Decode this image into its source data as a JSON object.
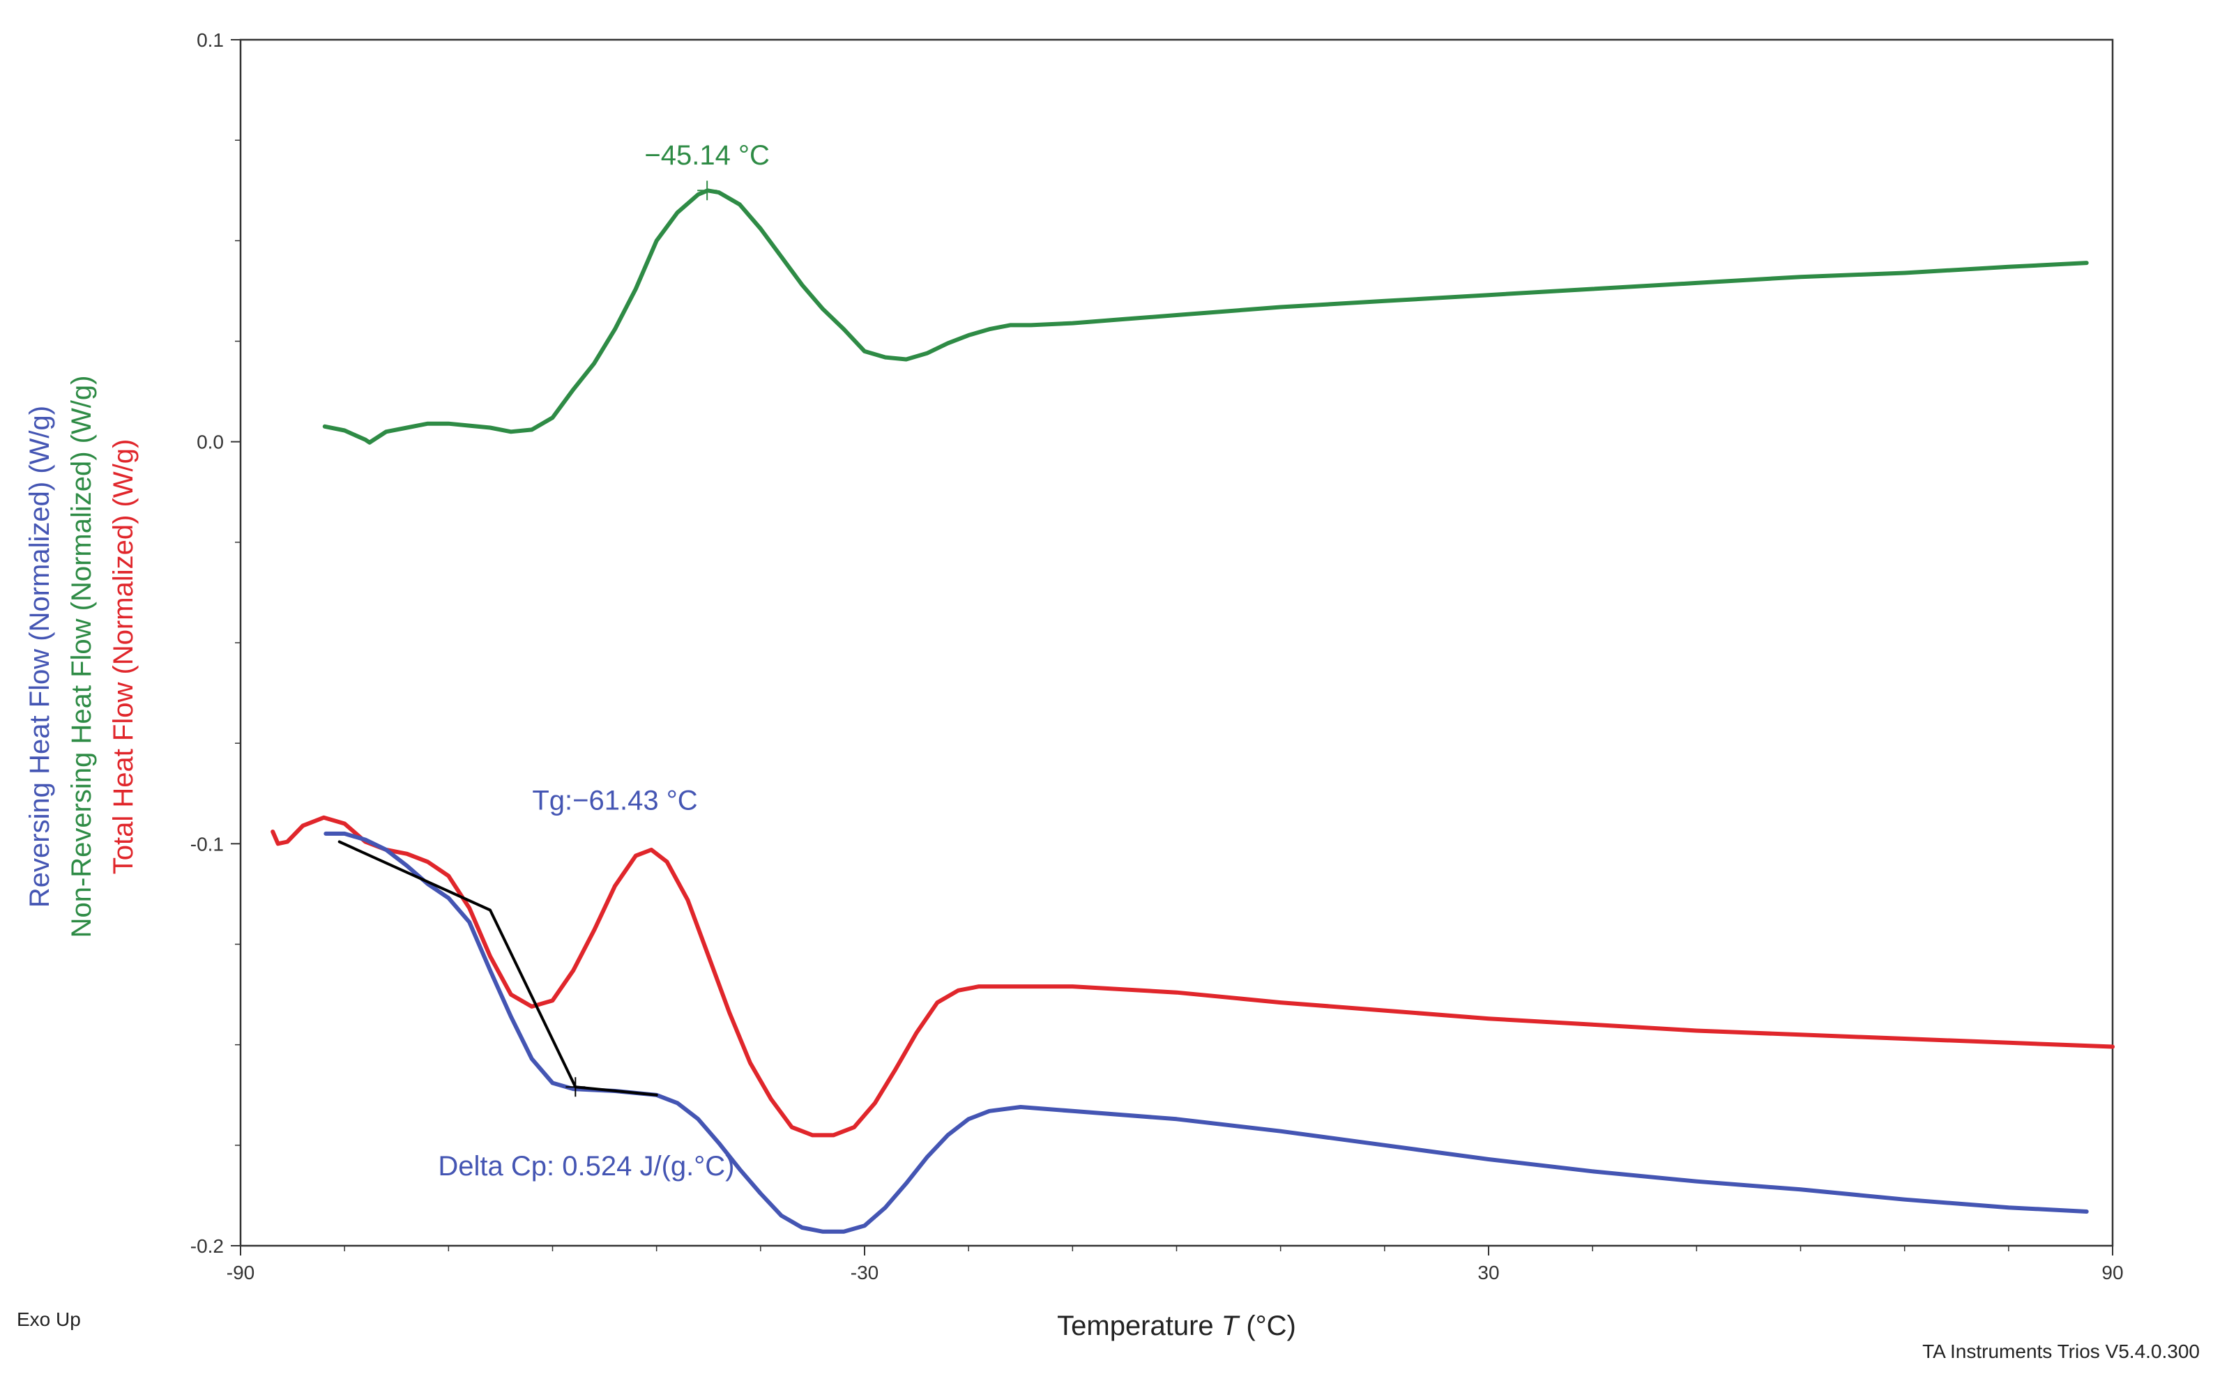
{
  "chart_data": {
    "type": "line",
    "title": "",
    "xlabel": "Temperature T (°C)",
    "xlabel_main": "Temperature ",
    "xlabel_var": "T",
    "xlabel_unit": " (°C)",
    "xlim": [
      -90,
      90
    ],
    "ylim": [
      -0.2,
      0.1
    ],
    "x_ticks": [
      -90,
      -30,
      30,
      90
    ],
    "x_tick_labels": [
      "-90",
      "-30",
      "30",
      "90"
    ],
    "y_ticks": [
      -0.2,
      -0.1,
      0.0,
      0.1
    ],
    "y_tick_labels": [
      "-0.2",
      "-0.1",
      "0.0",
      "0.1"
    ],
    "ylabels": [
      {
        "text": "Reversing Heat Flow (Normalized)  (W/g)",
        "color": "#4455b3"
      },
      {
        "text": "Non-Reversing Heat Flow (Normalized)  (W/g)",
        "color": "#2e8b45"
      },
      {
        "text": "Total Heat Flow (Normalized)  (W/g)",
        "color": "#e0262b"
      }
    ],
    "grid": false,
    "series": [
      {
        "name": "Non-Reversing Heat Flow (Normalized)",
        "color": "#2e8b45",
        "points": [
          [
            -81.9,
            0.0038
          ],
          [
            -80,
            0.0028
          ],
          [
            -78,
            0.0005
          ],
          [
            -77.6,
            -0.0002
          ],
          [
            -76,
            0.0025
          ],
          [
            -74,
            0.0035
          ],
          [
            -72,
            0.0045
          ],
          [
            -70,
            0.0045
          ],
          [
            -68,
            0.004
          ],
          [
            -66,
            0.0035
          ],
          [
            -64,
            0.0025
          ],
          [
            -62,
            0.003
          ],
          [
            -60,
            0.006
          ],
          [
            -58,
            0.013
          ],
          [
            -56,
            0.0195
          ],
          [
            -54,
            0.028
          ],
          [
            -52,
            0.038
          ],
          [
            -50,
            0.05
          ],
          [
            -48,
            0.057
          ],
          [
            -46,
            0.0615
          ],
          [
            -45.1,
            0.0625
          ],
          [
            -44,
            0.062
          ],
          [
            -42,
            0.059
          ],
          [
            -40,
            0.053
          ],
          [
            -38,
            0.046
          ],
          [
            -36,
            0.039
          ],
          [
            -34,
            0.033
          ],
          [
            -32,
            0.028
          ],
          [
            -30,
            0.0225
          ],
          [
            -28,
            0.021
          ],
          [
            -26,
            0.0205
          ],
          [
            -24,
            0.022
          ],
          [
            -22,
            0.0245
          ],
          [
            -20,
            0.0265
          ],
          [
            -18,
            0.028
          ],
          [
            -16,
            0.029
          ],
          [
            -14,
            0.029
          ],
          [
            -10,
            0.0295
          ],
          [
            -5,
            0.0305
          ],
          [
            0,
            0.0315
          ],
          [
            10,
            0.0335
          ],
          [
            20,
            0.035
          ],
          [
            30,
            0.0365
          ],
          [
            40,
            0.038
          ],
          [
            50,
            0.0395
          ],
          [
            60,
            0.041
          ],
          [
            70,
            0.042
          ],
          [
            80,
            0.0435
          ],
          [
            87.5,
            0.0445
          ]
        ]
      },
      {
        "name": "Total Heat Flow (Normalized)",
        "color": "#e0262b",
        "points": [
          [
            -86.9,
            -0.097
          ],
          [
            -86.4,
            -0.1
          ],
          [
            -85.5,
            -0.0995
          ],
          [
            -84,
            -0.0955
          ],
          [
            -82,
            -0.0935
          ],
          [
            -80,
            -0.095
          ],
          [
            -78,
            -0.0995
          ],
          [
            -76,
            -0.1015
          ],
          [
            -74,
            -0.1025
          ],
          [
            -72,
            -0.1045
          ],
          [
            -70,
            -0.108
          ],
          [
            -68,
            -0.116
          ],
          [
            -66,
            -0.128
          ],
          [
            -64,
            -0.1375
          ],
          [
            -62,
            -0.1405
          ],
          [
            -60,
            -0.139
          ],
          [
            -58,
            -0.1315
          ],
          [
            -56,
            -0.1215
          ],
          [
            -54,
            -0.1105
          ],
          [
            -52,
            -0.103
          ],
          [
            -50.5,
            -0.1015
          ],
          [
            -49,
            -0.1045
          ],
          [
            -47,
            -0.114
          ],
          [
            -45,
            -0.128
          ],
          [
            -43,
            -0.142
          ],
          [
            -41,
            -0.1545
          ],
          [
            -39,
            -0.1635
          ],
          [
            -37,
            -0.1705
          ],
          [
            -35,
            -0.1725
          ],
          [
            -33,
            -0.1725
          ],
          [
            -31,
            -0.1705
          ],
          [
            -29,
            -0.1645
          ],
          [
            -27,
            -0.156
          ],
          [
            -25,
            -0.147
          ],
          [
            -23,
            -0.1395
          ],
          [
            -21,
            -0.1365
          ],
          [
            -19,
            -0.1355
          ],
          [
            -15,
            -0.1355
          ],
          [
            -10,
            -0.1355
          ],
          [
            0,
            -0.137
          ],
          [
            10,
            -0.1395
          ],
          [
            20,
            -0.1415
          ],
          [
            30,
            -0.1435
          ],
          [
            40,
            -0.145
          ],
          [
            50,
            -0.1465
          ],
          [
            60,
            -0.1475
          ],
          [
            70,
            -0.1485
          ],
          [
            80,
            -0.1495
          ],
          [
            90,
            -0.1505
          ]
        ]
      },
      {
        "name": "Reversing Heat Flow (Normalized)",
        "color": "#4455b3",
        "points": [
          [
            -81.8,
            -0.0975
          ],
          [
            -80,
            -0.0975
          ],
          [
            -78,
            -0.099
          ],
          [
            -76,
            -0.1015
          ],
          [
            -74,
            -0.1055
          ],
          [
            -72,
            -0.11
          ],
          [
            -70,
            -0.1135
          ],
          [
            -68,
            -0.1195
          ],
          [
            -66,
            -0.1315
          ],
          [
            -64,
            -0.143
          ],
          [
            -62,
            -0.1535
          ],
          [
            -60,
            -0.1595
          ],
          [
            -58,
            -0.161
          ],
          [
            -54,
            -0.1615
          ],
          [
            -50,
            -0.1625
          ],
          [
            -48,
            -0.1645
          ],
          [
            -46,
            -0.1685
          ],
          [
            -44,
            -0.1745
          ],
          [
            -42,
            -0.181
          ],
          [
            -40,
            -0.187
          ],
          [
            -38,
            -0.1925
          ],
          [
            -36,
            -0.1955
          ],
          [
            -34,
            -0.1965
          ],
          [
            -32,
            -0.1965
          ],
          [
            -30,
            -0.195
          ],
          [
            -28,
            -0.1905
          ],
          [
            -26,
            -0.1845
          ],
          [
            -24,
            -0.178
          ],
          [
            -22,
            -0.1725
          ],
          [
            -20,
            -0.1685
          ],
          [
            -18,
            -0.1665
          ],
          [
            -15,
            -0.1655
          ],
          [
            -10,
            -0.1665
          ],
          [
            0,
            -0.1685
          ],
          [
            10,
            -0.1715
          ],
          [
            20,
            -0.175
          ],
          [
            30,
            -0.1785
          ],
          [
            40,
            -0.1815
          ],
          [
            50,
            -0.184
          ],
          [
            60,
            -0.186
          ],
          [
            70,
            -0.1885
          ],
          [
            80,
            -0.1905
          ],
          [
            87.5,
            -0.1915
          ]
        ]
      },
      {
        "name": "Tg tangent construction",
        "color": "#000000",
        "points": [
          [
            -80.5,
            -0.0995
          ],
          [
            -66,
            -0.1165
          ],
          [
            -57.8,
            -0.1605
          ],
          [
            -50,
            -0.1625
          ]
        ]
      }
    ],
    "markers": [
      {
        "x": -45.14,
        "y": 0.0625,
        "color": "#2e8b45"
      },
      {
        "x": -57.8,
        "y": -0.1605,
        "color": "#000000"
      }
    ],
    "annotations": [
      {
        "text": "−45.14 °C",
        "x": -45.14,
        "y": 0.069,
        "color": "#2e8b45",
        "anchor": "middle"
      },
      {
        "text": "Tg:−61.43 °C",
        "x": -54,
        "y": -0.0915,
        "color": "#4455b3",
        "anchor": "middle"
      },
      {
        "text": "Delta Cp: 0.524 J/(g.°C)",
        "x": -71,
        "y": -0.1825,
        "color": "#4455b3",
        "anchor": "start"
      }
    ]
  },
  "footer": {
    "exo_label": "Exo Up",
    "software_label": "TA Instruments Trios V5.4.0.300"
  }
}
